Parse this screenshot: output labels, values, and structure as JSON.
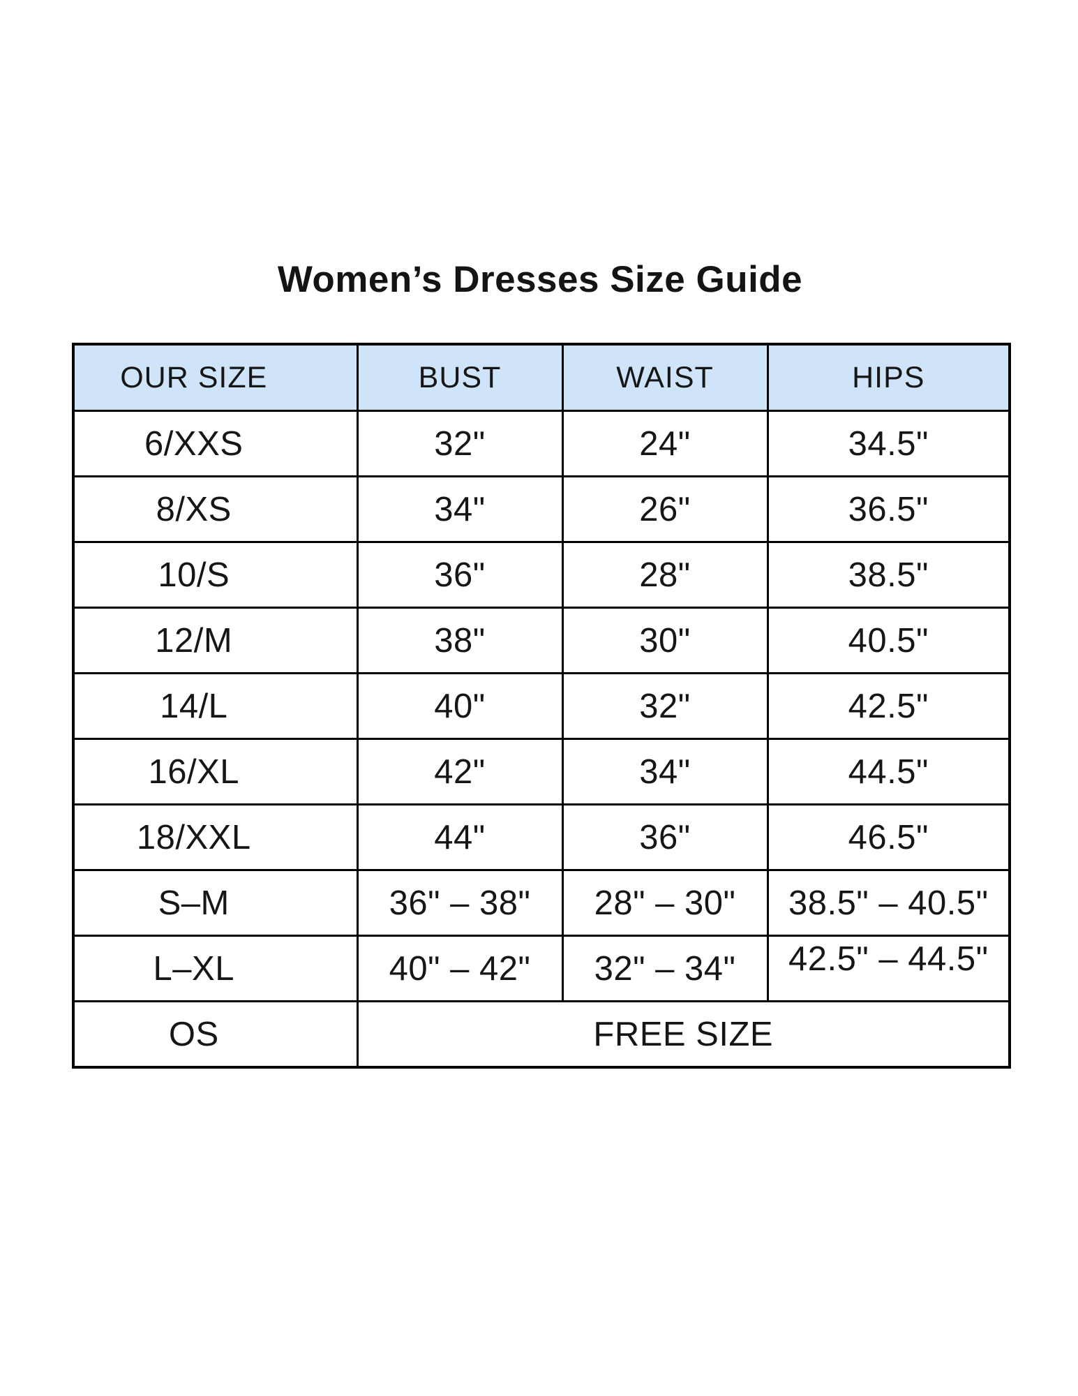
{
  "title": "Women’s Dresses Size Guide",
  "colors": {
    "header_bg": "#cfe4f8",
    "border": "#000000",
    "text": "#161616"
  },
  "table": {
    "columns": [
      "OUR SIZE",
      "BUST",
      "WAIST",
      "HIPS"
    ],
    "rows": [
      {
        "cells": [
          {
            "text": "6/XXS"
          },
          {
            "text": "32\""
          },
          {
            "text": "24\""
          },
          {
            "text": "34.5\""
          }
        ]
      },
      {
        "cells": [
          {
            "text": "8/XS"
          },
          {
            "text": "34\""
          },
          {
            "text": "26\""
          },
          {
            "text": "36.5\""
          }
        ]
      },
      {
        "cells": [
          {
            "text": "10/S"
          },
          {
            "text": "36\""
          },
          {
            "text": "28\""
          },
          {
            "text": "38.5\""
          }
        ]
      },
      {
        "cells": [
          {
            "text": "12/M"
          },
          {
            "text": "38\""
          },
          {
            "text": "30\""
          },
          {
            "text": "40.5\""
          }
        ]
      },
      {
        "cells": [
          {
            "text": "14/L"
          },
          {
            "text": "40\""
          },
          {
            "text": "32\""
          },
          {
            "text": "42.5\""
          }
        ]
      },
      {
        "cells": [
          {
            "text": "16/XL"
          },
          {
            "text": "42\""
          },
          {
            "text": "34\""
          },
          {
            "text": "44.5\""
          }
        ]
      },
      {
        "cells": [
          {
            "text": "18/XXL"
          },
          {
            "text": "44\""
          },
          {
            "text": "36\""
          },
          {
            "text": "46.5\""
          }
        ]
      },
      {
        "cells": [
          {
            "text": "S–M"
          },
          {
            "text": "36\" – 38\""
          },
          {
            "text": "28\" – 30\""
          },
          {
            "text": "38.5\" – 40.5\""
          }
        ]
      },
      {
        "cells": [
          {
            "text": "L–XL"
          },
          {
            "text": "40\" – 42\""
          },
          {
            "text": "32\" – 34\""
          },
          {
            "text": "42.5\" – 44.5\""
          }
        ]
      },
      {
        "cells": [
          {
            "text": "OS"
          },
          {
            "text": "FREE SIZE",
            "colspan": 3
          }
        ]
      }
    ]
  }
}
